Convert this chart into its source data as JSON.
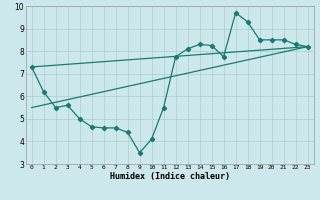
{
  "xlabel": "Humidex (Indice chaleur)",
  "xlim": [
    -0.5,
    23.5
  ],
  "ylim": [
    3,
    10
  ],
  "xticks": [
    0,
    1,
    2,
    3,
    4,
    5,
    6,
    7,
    8,
    9,
    10,
    11,
    12,
    13,
    14,
    15,
    16,
    17,
    18,
    19,
    20,
    21,
    22,
    23
  ],
  "yticks": [
    3,
    4,
    5,
    6,
    7,
    8,
    9,
    10
  ],
  "bg_color": "#cde8ec",
  "grid_color": "#aacecc",
  "line_color": "#1a7a6e",
  "line_width": 0.9,
  "marker": "D",
  "marker_size": 2.2,
  "lines": [
    {
      "x": [
        0,
        1,
        2,
        3,
        4,
        5,
        6,
        7,
        8,
        9,
        10,
        11,
        12,
        13,
        14,
        15,
        16,
        17,
        18,
        19,
        20,
        21,
        22,
        23
      ],
      "y": [
        7.3,
        6.2,
        5.5,
        5.6,
        5.0,
        4.65,
        4.6,
        4.6,
        4.4,
        3.5,
        4.1,
        5.5,
        7.75,
        8.1,
        8.3,
        8.25,
        7.75,
        9.7,
        9.3,
        8.5,
        8.5,
        8.5,
        8.3,
        8.2
      ],
      "markers": true
    },
    {
      "x": [
        0,
        23
      ],
      "y": [
        7.3,
        8.2
      ],
      "markers": false
    },
    {
      "x": [
        0,
        23
      ],
      "y": [
        5.5,
        8.2
      ],
      "markers": false
    }
  ]
}
